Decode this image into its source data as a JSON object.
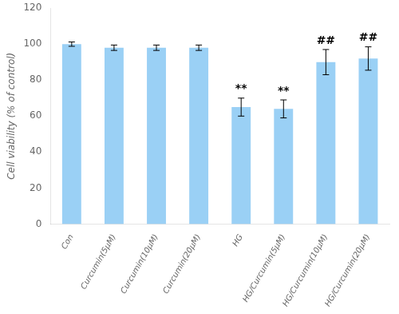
{
  "chart_data": {
    "type": "bar",
    "categories": [
      "Con",
      "Curcumin(5μM)",
      "Curcumin(10μM)",
      "Curcumin(20μM)",
      "HG",
      "HG/Curcumin(5μM)",
      "HG/Curcumin(10μM)",
      "HG/Curcumin(20μM)"
    ],
    "values": [
      100,
      98,
      98,
      98,
      65,
      64,
      90,
      92
    ],
    "errors": [
      1.2,
      1.5,
      1.5,
      1.5,
      5.0,
      5.0,
      7.0,
      6.5
    ],
    "ylabel": "Cell viability (% of control)",
    "ylim": [
      0,
      120
    ],
    "yticks": [
      0,
      20,
      40,
      60,
      80,
      100,
      120
    ],
    "grid": false,
    "annotations": [
      {
        "category": "HG",
        "text": "**"
      },
      {
        "category": "HG/Curcumin(5μM)",
        "text": "**"
      },
      {
        "category": "HG/Curcumin(10μM)",
        "text": "##"
      },
      {
        "category": "HG/Curcumin(20μM)",
        "text": "##"
      }
    ]
  }
}
